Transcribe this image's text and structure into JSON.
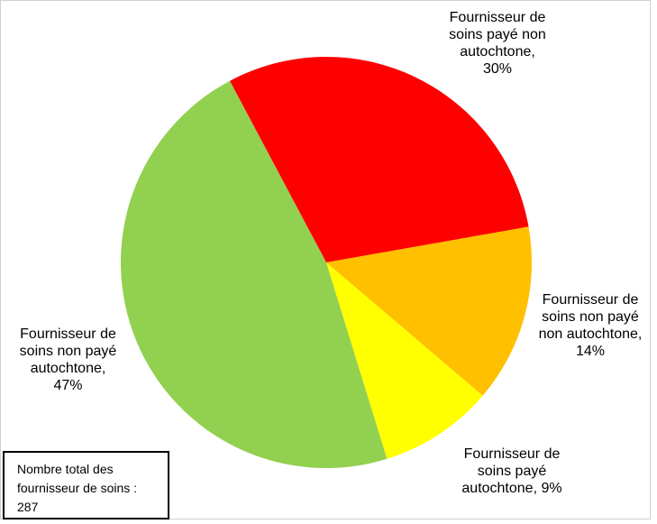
{
  "chart_data": {
    "type": "pie",
    "title": "",
    "slices": [
      {
        "label": "Fournisseur de\nsoins payé non\nautochtone,\n30%",
        "value": 30,
        "color": "#FF0000"
      },
      {
        "label": "Fournisseur de\nsoins non payé\nnon autochtone,\n14%",
        "value": 14,
        "color": "#FFC000"
      },
      {
        "label": "Fournisseur de\nsoins payé\nautochtone, 9%",
        "value": 9,
        "color": "#FFFF00"
      },
      {
        "label": "Fournisseur de\nsoins non payé\nautochtone,\n47%",
        "value": 47,
        "color": "#92D050"
      }
    ],
    "start_angle_deg": -28,
    "direction": "clockwise",
    "legend": "none"
  },
  "note": "Nombre total des\nfournisseur de soins :\n287"
}
